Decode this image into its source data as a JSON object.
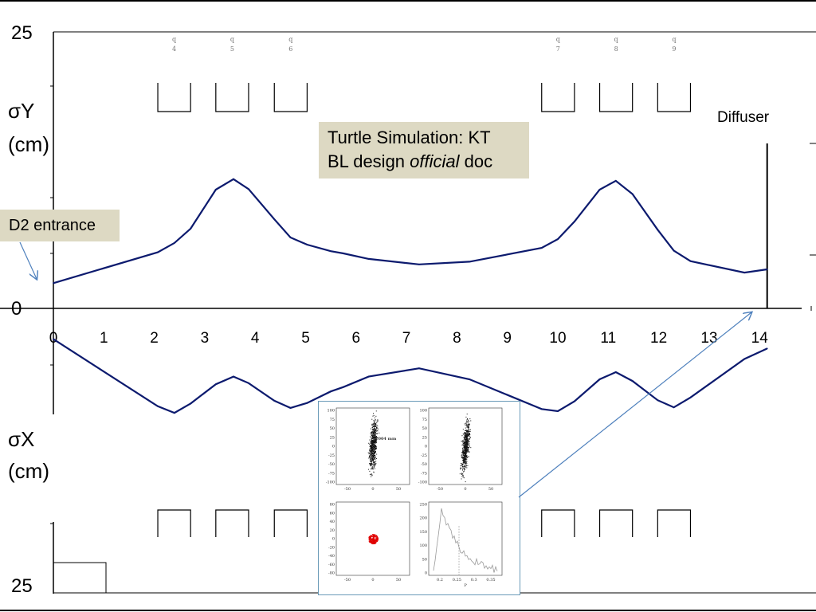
{
  "chart_data": {
    "type": "line",
    "labels": {
      "y_top": "25",
      "y_zero": "0",
      "y_bottom": "25",
      "sigma_y_label": "σY",
      "sigma_y_unit": "(cm)",
      "sigma_x_label": "σX",
      "sigma_x_unit": "(cm)",
      "diffuser": "Diffuser",
      "d2_entrance": "D2 entrance",
      "title_line1": "Turtle Simulation: KT",
      "title_line2_a": "BL design ",
      "title_line2_b": "official",
      "title_line2_c": " doc"
    },
    "x_ticks": [
      0,
      1,
      2,
      3,
      4,
      5,
      6,
      7,
      8,
      9,
      10,
      11,
      12,
      13,
      14
    ],
    "xlim": [
      0,
      14.8
    ],
    "ylim": [
      0,
      25
    ],
    "quadrupoles": [
      {
        "name": "q4",
        "start": 2.07,
        "end": 2.72
      },
      {
        "name": "q5",
        "start": 3.22,
        "end": 3.87
      },
      {
        "name": "q6",
        "start": 4.38,
        "end": 5.03
      },
      {
        "name": "q7",
        "start": 9.68,
        "end": 10.33
      },
      {
        "name": "q8",
        "start": 10.83,
        "end": 11.48
      },
      {
        "name": "q9",
        "start": 11.98,
        "end": 12.63
      }
    ],
    "diffuser_x": 14.15,
    "sigma_y": {
      "x": [
        0,
        2.07,
        2.4,
        2.72,
        3.22,
        3.57,
        3.87,
        4.38,
        4.7,
        5.03,
        5.5,
        5.75,
        6.25,
        7.25,
        8.25,
        9.68,
        10.0,
        10.33,
        10.83,
        11.15,
        11.48,
        11.98,
        12.3,
        12.63,
        13.7,
        14.15
      ],
      "y": [
        2.3,
        5.1,
        5.95,
        7.25,
        10.8,
        11.75,
        10.85,
        8.1,
        6.45,
        5.8,
        5.2,
        5.0,
        4.5,
        4.0,
        4.25,
        5.5,
        6.3,
        7.9,
        10.8,
        11.6,
        10.4,
        7.15,
        5.25,
        4.3,
        3.25,
        3.55
      ]
    },
    "sigma_x": {
      "x": [
        0,
        2.07,
        2.4,
        2.72,
        3.22,
        3.57,
        3.87,
        4.38,
        4.7,
        5.03,
        5.5,
        5.75,
        6.25,
        7.25,
        8.25,
        9.68,
        10.0,
        10.33,
        10.83,
        11.15,
        11.48,
        11.98,
        12.3,
        12.63,
        13.7,
        14.15
      ],
      "y": [
        2.8,
        8.9,
        9.5,
        8.65,
        6.9,
        6.2,
        6.8,
        8.4,
        9.05,
        8.6,
        7.55,
        7.15,
        6.2,
        5.45,
        6.45,
        9.15,
        9.35,
        8.45,
        6.45,
        5.8,
        6.6,
        8.35,
        9.0,
        8.1,
        4.6,
        3.65
      ]
    },
    "inset": {
      "panels": [
        {
          "name": "top-left",
          "xticks": [
            "-50",
            "0",
            "50"
          ],
          "yticks": [
            "100",
            "75",
            "50",
            "25",
            "0",
            "-25",
            "-50",
            "-75",
            "-100"
          ],
          "annotation": "1004 mm"
        },
        {
          "name": "top-right",
          "xticks": [
            "-50",
            "0",
            "50"
          ],
          "yticks": [
            "100",
            "75",
            "50",
            "25",
            "0",
            "-25",
            "-50",
            "-75",
            "-100"
          ]
        },
        {
          "name": "bottom-left",
          "xticks": [
            "-50",
            "0",
            "50"
          ],
          "yticks": [
            "80",
            "60",
            "40",
            "20",
            "0",
            "-20",
            "-40",
            "-60",
            "-80"
          ]
        },
        {
          "name": "bottom-right",
          "xticks": [
            "0.2",
            "0.25",
            "0.3",
            "0.35"
          ],
          "yticks": [
            "250",
            "200",
            "150",
            "100",
            "50",
            "0"
          ],
          "xlabel": "P"
        }
      ]
    },
    "colors": {
      "line": "#0c1a6e",
      "callout_bg": "#ddd9c3",
      "arrow": "#4f81bd",
      "scatter": "#111111",
      "spot": "#e00000",
      "hist": "#999999"
    }
  }
}
